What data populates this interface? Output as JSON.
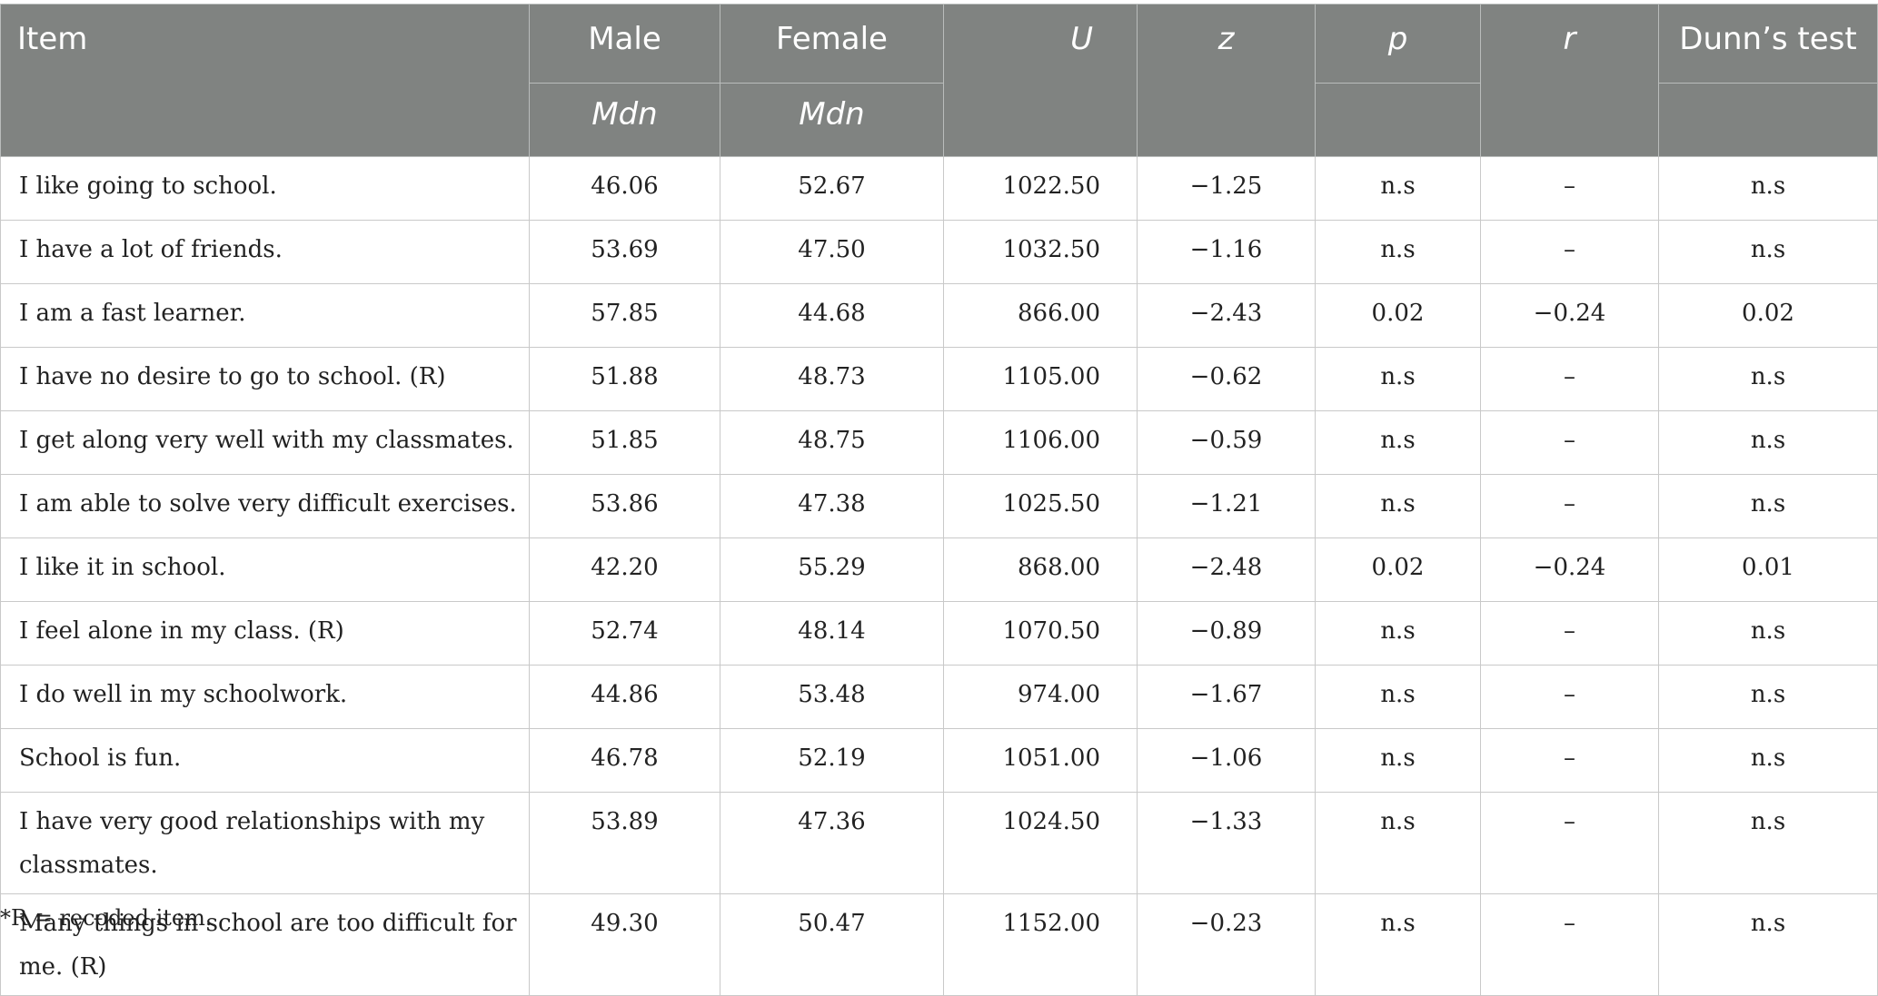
{
  "table": {
    "headers": {
      "item": "Item",
      "male": "Male",
      "female": "Female",
      "u": "U",
      "z": "z",
      "p": "p",
      "r": "r",
      "dunn": "Dunn’s test",
      "male_sub": "Mdn",
      "female_sub": "Mdn"
    },
    "rows": [
      {
        "item": "I like going to school.",
        "male": "46.06",
        "female": "52.67",
        "u": "1022.50",
        "z": "−1.25",
        "p": "n.s",
        "r": "–",
        "dunn": "n.s"
      },
      {
        "item": "I have a lot of friends.",
        "male": "53.69",
        "female": "47.50",
        "u": "1032.50",
        "z": "−1.16",
        "p": "n.s",
        "r": "–",
        "dunn": "n.s"
      },
      {
        "item": "I am a fast learner.",
        "male": "57.85",
        "female": "44.68",
        "u": "866.00",
        "z": "−2.43",
        "p": "0.02",
        "r": "−0.24",
        "dunn": "0.02"
      },
      {
        "item": "I have no desire to go to school. (R)",
        "male": "51.88",
        "female": "48.73",
        "u": "1105.00",
        "z": "−0.62",
        "p": "n.s",
        "r": "–",
        "dunn": "n.s"
      },
      {
        "item": "I get along very well with my classmates.",
        "male": "51.85",
        "female": "48.75",
        "u": "1106.00",
        "z": "−0.59",
        "p": "n.s",
        "r": "–",
        "dunn": "n.s"
      },
      {
        "item": "I am able to solve very difficult exercises.",
        "male": "53.86",
        "female": "47.38",
        "u": "1025.50",
        "z": "−1.21",
        "p": "n.s",
        "r": "–",
        "dunn": "n.s"
      },
      {
        "item": "I like it in school.",
        "male": "42.20",
        "female": "55.29",
        "u": "868.00",
        "z": "−2.48",
        "p": "0.02",
        "r": "−0.24",
        "dunn": "0.01"
      },
      {
        "item": "I feel alone in my class. (R)",
        "male": "52.74",
        "female": "48.14",
        "u": "1070.50",
        "z": "−0.89",
        "p": "n.s",
        "r": "–",
        "dunn": "n.s"
      },
      {
        "item": "I do well in my schoolwork.",
        "male": "44.86",
        "female": "53.48",
        "u": "974.00",
        "z": "−1.67",
        "p": "n.s",
        "r": "–",
        "dunn": "n.s"
      },
      {
        "item": "School is fun.",
        "male": "46.78",
        "female": "52.19",
        "u": "1051.00",
        "z": "−1.06",
        "p": "n.s",
        "r": "–",
        "dunn": "n.s"
      },
      {
        "item": "I have very good relationships with my classmates.",
        "male": "53.89",
        "female": "47.36",
        "u": "1024.50",
        "z": "−1.33",
        "p": "n.s",
        "r": "–",
        "dunn": "n.s"
      },
      {
        "item": "Many things in school are too difficult for me. (R)",
        "male": "49.30",
        "female": "50.47",
        "u": "1152.00",
        "z": "−0.23",
        "p": "n.s",
        "r": "–",
        "dunn": "n.s"
      }
    ]
  },
  "footnote": "*R = recoded item.",
  "colors": {
    "header_bg": "#808381",
    "header_text": "#ffffff",
    "grid": "#c9c9c9"
  }
}
